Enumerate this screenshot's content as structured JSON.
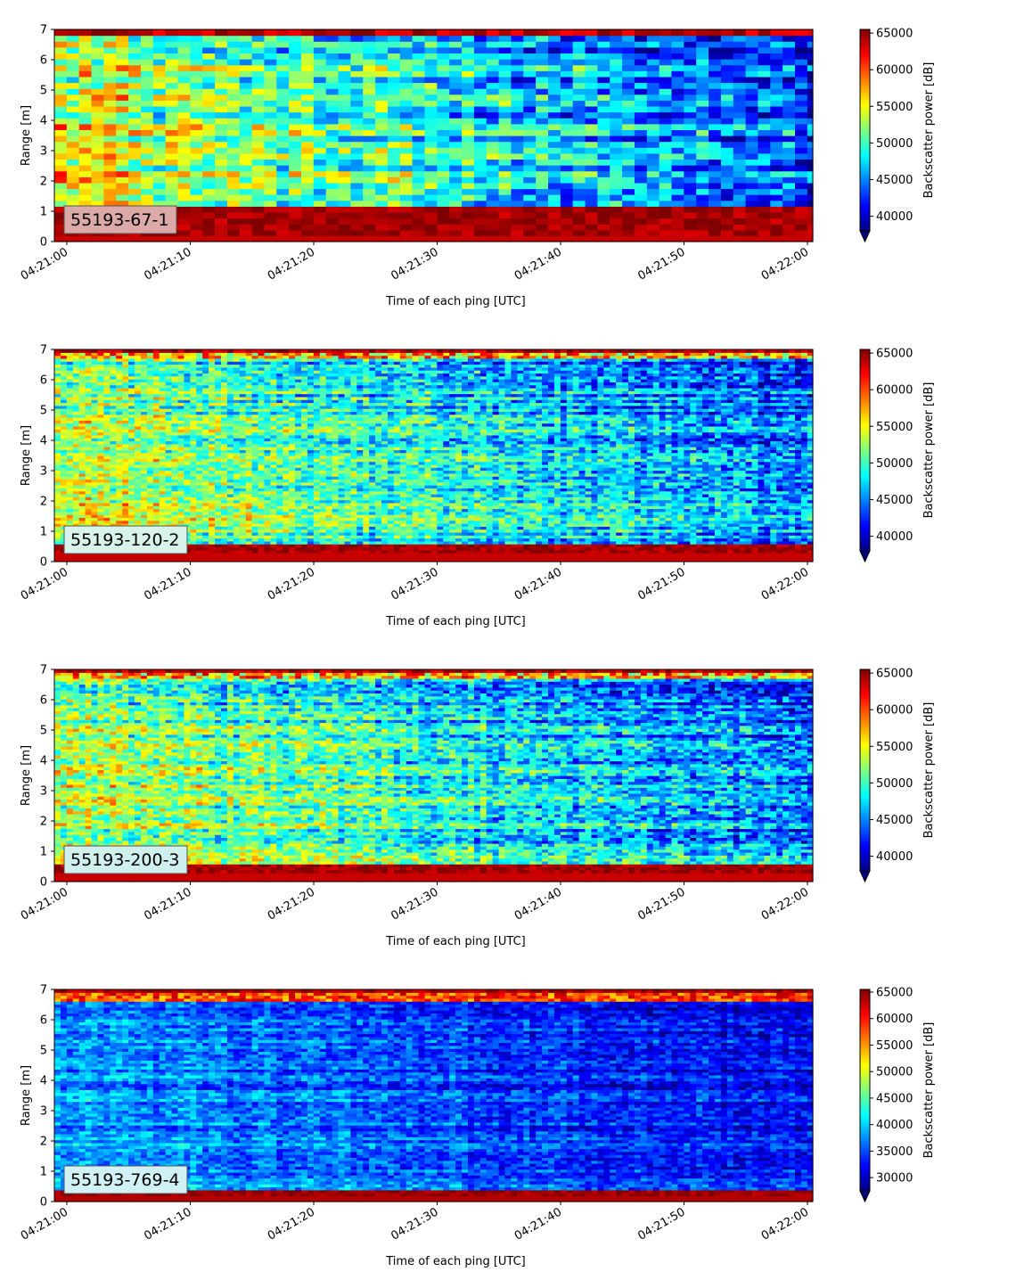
{
  "figure": {
    "x_tick_labels": [
      "04:21:00",
      "04:21:10",
      "04:21:20",
      "04:21:30",
      "04:21:40",
      "04:21:50",
      "04:22:00"
    ],
    "y_tick_labels": [
      "0",
      "1",
      "2",
      "3",
      "4",
      "5",
      "6",
      "7"
    ]
  },
  "colors": {
    "colormap": "jet",
    "colormap_stops": [
      "#00007f",
      "#0000ff",
      "#007fff",
      "#00ffff",
      "#7fff7f",
      "#ffff00",
      "#ff7f00",
      "#ff0000",
      "#7f0000"
    ],
    "panel_label_colors": [
      "#dbaaa8",
      "#d8f3ec",
      "#cff0ec",
      "#d0f2f5"
    ]
  },
  "chart_data": [
    {
      "type": "heatmap",
      "panel_label": "55193-67-1",
      "xlabel": "Time of each ping [UTC]",
      "ylabel": "Range [m]",
      "colorbar_label": "Backscatter power [dB]",
      "colorbar_ticks": [
        40000,
        45000,
        50000,
        55000,
        60000,
        65000
      ],
      "clim": [
        38000,
        65500
      ],
      "colorbar_extend": "min",
      "xlim": [
        "04:21:00",
        "04:22:00"
      ],
      "ylim": [
        0,
        7
      ],
      "y_ticks": [
        0,
        1,
        2,
        3,
        4,
        5,
        6,
        7
      ],
      "ping_interval_s": 1,
      "range_bins": 36,
      "bottom_band_m": [
        0.25,
        1.1
      ],
      "top_band_m": [
        6.75,
        7.0
      ],
      "bottom_trend": 56000,
      "top_trend": 43000,
      "noise": 6500
    },
    {
      "type": "heatmap",
      "panel_label": "55193-120-2",
      "xlabel": "Time of each ping [UTC]",
      "ylabel": "Range [m]",
      "colorbar_label": "Backscatter power [dB]",
      "colorbar_ticks": [
        40000,
        45000,
        50000,
        55000,
        60000,
        65000
      ],
      "clim": [
        38000,
        65500
      ],
      "colorbar_extend": "min",
      "xlim": [
        "04:21:00",
        "04:22:00"
      ],
      "ylim": [
        0,
        7
      ],
      "y_ticks": [
        0,
        1,
        2,
        3,
        4,
        5,
        6,
        7
      ],
      "ping_interval_s": 0.5,
      "range_bins": 72,
      "bottom_band_m": [
        0.25,
        0.6
      ],
      "top_band_m": [
        6.7,
        7.0
      ],
      "bottom_trend": 54500,
      "top_trend": 44000,
      "noise": 6000
    },
    {
      "type": "heatmap",
      "panel_label": "55193-200-3",
      "xlabel": "Time of each ping [UTC]",
      "ylabel": "Range [m]",
      "colorbar_label": "Backscatter power [dB]",
      "colorbar_ticks": [
        40000,
        45000,
        50000,
        55000,
        60000,
        65000
      ],
      "clim": [
        38000,
        65500
      ],
      "colorbar_extend": "min",
      "xlim": [
        "04:21:00",
        "04:22:00"
      ],
      "ylim": [
        0,
        7
      ],
      "y_ticks": [
        0,
        1,
        2,
        3,
        4,
        5,
        6,
        7
      ],
      "ping_interval_s": 0.5,
      "range_bins": 72,
      "bottom_band_m": [
        0.25,
        0.6
      ],
      "top_band_m": [
        6.7,
        7.0
      ],
      "bottom_trend": 54000,
      "top_trend": 44000,
      "noise": 6000
    },
    {
      "type": "heatmap",
      "panel_label": "55193-769-4",
      "xlabel": "Time of each ping [UTC]",
      "ylabel": "Range [m]",
      "colorbar_label": "Backscatter power [dB]",
      "colorbar_ticks": [
        30000,
        35000,
        40000,
        45000,
        50000,
        55000,
        60000,
        65000
      ],
      "clim": [
        27500,
        65500
      ],
      "colorbar_extend": "min",
      "xlim": [
        "04:21:00",
        "04:22:00"
      ],
      "ylim": [
        0,
        7
      ],
      "y_ticks": [
        0,
        1,
        2,
        3,
        4,
        5,
        6,
        7
      ],
      "ping_interval_s": 0.5,
      "range_bins": 72,
      "bottom_band_m": [
        0.2,
        0.35
      ],
      "top_band_m": [
        6.6,
        7.0
      ],
      "bottom_trend": 39000,
      "top_trend": 32000,
      "noise": 5000
    }
  ]
}
